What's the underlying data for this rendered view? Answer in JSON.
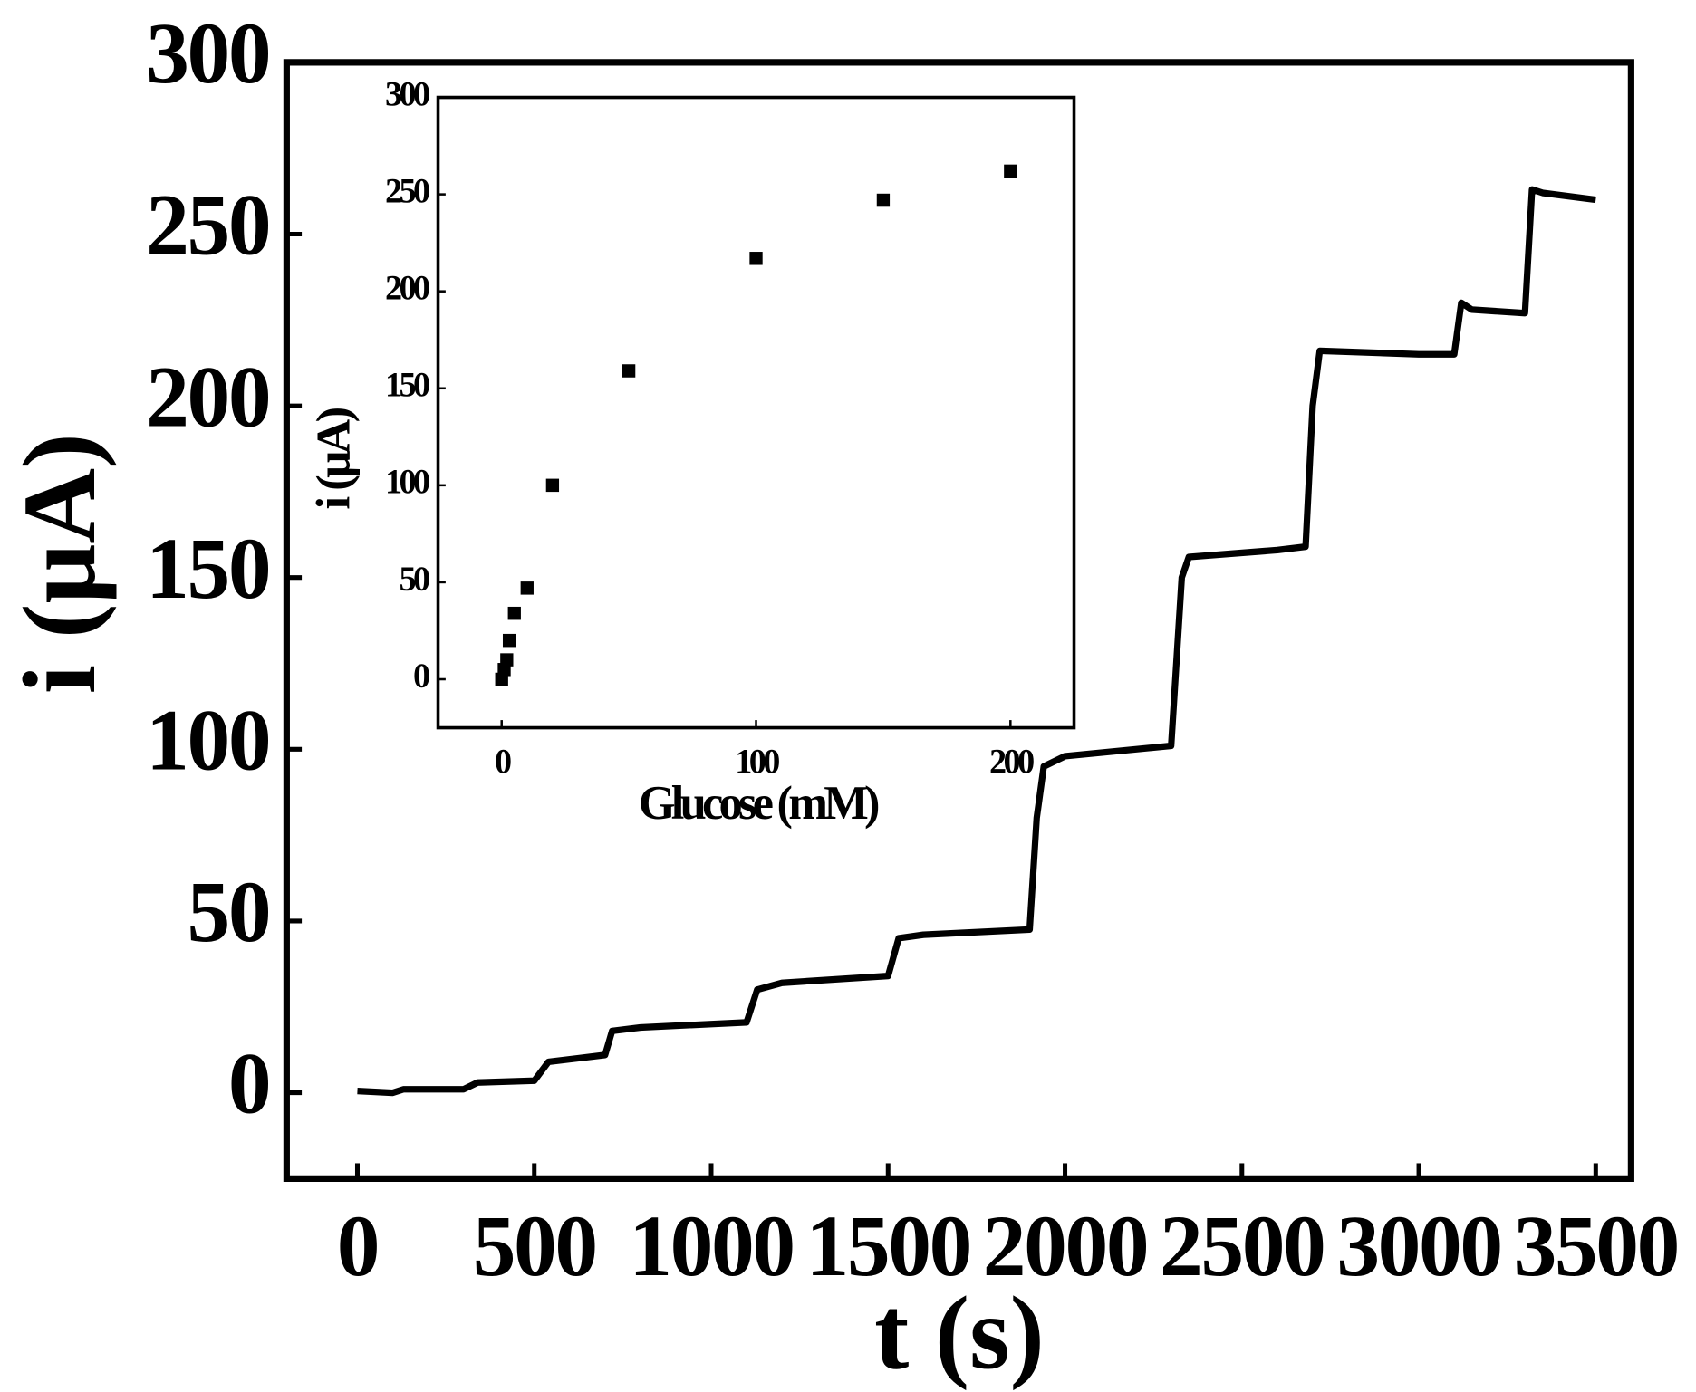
{
  "chart_data": [
    {
      "type": "line",
      "xlabel": "t (s)",
      "ylabel": "i (μA)",
      "color": "#000000",
      "x": [
        0,
        100,
        130,
        300,
        340,
        500,
        540,
        700,
        720,
        800,
        1100,
        1130,
        1200,
        1500,
        1530,
        1600,
        1900,
        1920,
        1940,
        2000,
        2300,
        2330,
        2350,
        2600,
        2680,
        2700,
        2720,
        3000,
        3100,
        3120,
        3150,
        3300,
        3320,
        3350,
        3500
      ],
      "values": [
        0.5,
        0,
        1,
        1,
        3,
        3.5,
        9,
        11,
        18,
        19,
        20.5,
        30,
        32,
        34,
        45,
        46,
        47.5,
        80,
        95,
        98,
        101,
        150,
        156,
        158,
        159,
        200,
        216,
        215,
        215,
        230,
        228,
        227,
        263,
        262,
        260
      ],
      "xlim": [
        -200,
        3600
      ],
      "ylim": [
        -25,
        300
      ],
      "xticks": [
        0,
        500,
        1000,
        1500,
        2000,
        2500,
        3000,
        3500
      ],
      "yticks": [
        0,
        50,
        100,
        150,
        200,
        250,
        300
      ]
    },
    {
      "type": "scatter",
      "xlabel": "Glucose (mM)",
      "ylabel": "i (μA)",
      "color": "#000000",
      "x": [
        0,
        1,
        2,
        3,
        5,
        10,
        20,
        50,
        100,
        150,
        200
      ],
      "values": [
        0,
        5,
        10,
        20,
        34,
        47,
        100,
        159,
        217,
        247,
        262
      ],
      "xlim": [
        -25,
        225
      ],
      "ylim": [
        -25,
        300
      ],
      "xticks": [
        0,
        100,
        200
      ],
      "yticks": [
        0,
        50,
        100,
        150,
        200,
        250,
        300
      ]
    }
  ]
}
